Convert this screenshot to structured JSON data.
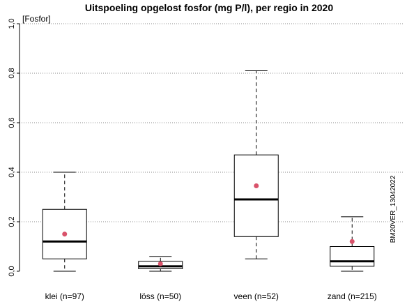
{
  "chart_data": {
    "type": "boxplot",
    "title": "Uitspoeling opgelost fosfor (mg P/l), per regio in 2020",
    "ylabel": "[Fosfor]",
    "side_note": "BM20VER_13042022",
    "ylim": [
      0,
      1
    ],
    "yticks": [
      0,
      0.2,
      0.4,
      0.6,
      0.8,
      1.0
    ],
    "ytick_labels": [
      "0,0",
      "0,2",
      "0,4",
      "0,6",
      "0,8",
      "1,0"
    ],
    "grid": "horizontal-dotted",
    "categories": [
      "klei (n=97)",
      "löss (n=50)",
      "veen (n=52)",
      "zand (n=215)"
    ],
    "boxes": [
      {
        "label": "klei (n=97)",
        "whisker_low": 0.0,
        "q1": 0.05,
        "median": 0.12,
        "q3": 0.25,
        "whisker_high": 0.4,
        "mean": 0.15
      },
      {
        "label": "löss (n=50)",
        "whisker_low": 0.0,
        "q1": 0.01,
        "median": 0.02,
        "q3": 0.04,
        "whisker_high": 0.06,
        "mean": 0.03
      },
      {
        "label": "veen (n=52)",
        "whisker_low": 0.05,
        "q1": 0.14,
        "median": 0.29,
        "q3": 0.47,
        "whisker_high": 0.81,
        "mean": 0.345
      },
      {
        "label": "zand (n=215)",
        "whisker_low": 0.0,
        "q1": 0.02,
        "median": 0.04,
        "q3": 0.1,
        "whisker_high": 0.22,
        "mean": 0.12
      }
    ],
    "colors": {
      "mean_marker": "#d9536b",
      "box_stroke": "#000000",
      "grid": "#888888"
    }
  }
}
